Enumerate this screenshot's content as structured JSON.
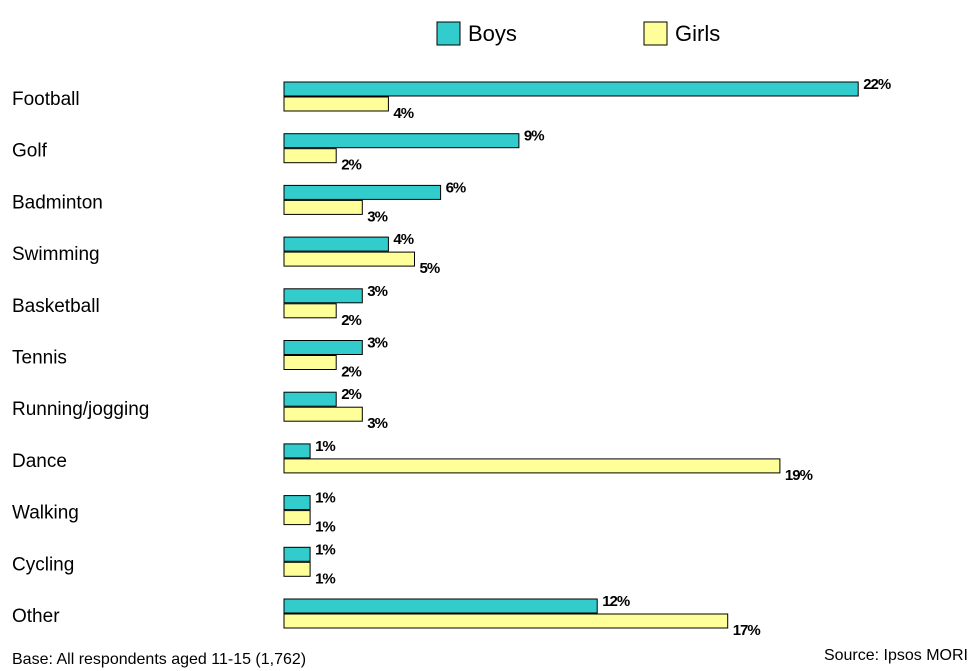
{
  "chart_data": {
    "type": "bar",
    "orientation": "horizontal",
    "categories": [
      "Football",
      "Golf",
      "Badminton",
      "Swimming",
      "Basketball",
      "Tennis",
      "Running/jogging",
      "Dance",
      "Walking",
      "Cycling",
      "Other"
    ],
    "series": [
      {
        "name": "Boys",
        "color": "#33cccc",
        "values": [
          22,
          9,
          6,
          4,
          3,
          3,
          2,
          1,
          1,
          1,
          12
        ],
        "value_labels": [
          "22%",
          "9%",
          "6%",
          "4%",
          "3%",
          "3%",
          "2%",
          "1%",
          "1%",
          "1%",
          "12%"
        ]
      },
      {
        "name": "Girls",
        "color": "#ffff99",
        "values": [
          4,
          2,
          3,
          5,
          2,
          2,
          3,
          19,
          1,
          1,
          17
        ],
        "value_labels": [
          "4%",
          "2%",
          "3%",
          "5%",
          "2%",
          "2%",
          "3%",
          "19%",
          "1%",
          "1%",
          "17%"
        ]
      }
    ],
    "footnote": "Base: All respondents aged 11-15 (1,762)",
    "source": "Source: Ipsos MORI"
  }
}
